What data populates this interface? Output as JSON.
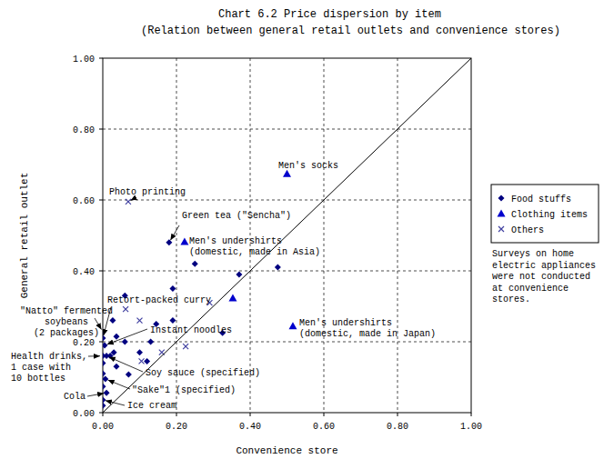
{
  "chart_data": {
    "type": "scatter",
    "title": "Chart 6.2 Price dispersion by item",
    "subtitle": "(Relation between general retail outlets and convenience stores)",
    "x_label": "Convenience store",
    "y_label": "General retail outlet",
    "xlim": [
      0,
      1
    ],
    "ylim": [
      0,
      1
    ],
    "xticks": [
      {
        "value": 0,
        "label": "0.00"
      },
      {
        "value": 0.2,
        "label": "0.20"
      },
      {
        "value": 0.4,
        "label": "0.40"
      },
      {
        "value": 0.6,
        "label": "0.60"
      },
      {
        "value": 0.8,
        "label": "0.80"
      },
      {
        "value": 1,
        "label": "1.00"
      }
    ],
    "yticks": [
      {
        "value": 0,
        "label": "0.00"
      },
      {
        "value": 0.2,
        "label": "0.20"
      },
      {
        "value": 0.4,
        "label": "0.40"
      },
      {
        "value": 0.6,
        "label": "0.60"
      },
      {
        "value": 0.8,
        "label": "0.80"
      },
      {
        "value": 1,
        "label": "1.00"
      }
    ],
    "grid": true,
    "legend": "right",
    "note": [
      "Surveys on home",
      "electric appliances",
      "were not conducted",
      "at convenience",
      "stores."
    ],
    "series": [
      {
        "name": "Food stuffs",
        "color": "#000080",
        "marker": "diamond",
        "x": [
          0.18,
          0.25,
          0.37,
          0.475,
          0.19,
          0.06,
          0.027,
          0.19,
          0.325,
          0.037,
          0.06,
          0.145,
          0.13,
          0.1,
          0.12,
          0,
          0,
          0.005,
          0,
          0.01,
          0,
          0.037,
          0,
          0.007,
          0,
          0.01,
          0,
          0,
          0.03,
          0.07,
          0.02
        ],
        "values": [
          0.48,
          0.42,
          0.39,
          0.41,
          0.35,
          0.33,
          0.26,
          0.26,
          0.225,
          0.215,
          0.2,
          0.25,
          0.2,
          0.17,
          0.145,
          0.228,
          0.21,
          0.19,
          0.16,
          0.16,
          0.14,
          0.13,
          0.11,
          0.095,
          0.074,
          0.056,
          0.036,
          0.02,
          0.17,
          0.108,
          0.16
        ],
        "labels": [
          "Green tea (\"Sencha\")",
          null,
          null,
          null,
          null,
          null,
          null,
          null,
          null,
          null,
          null,
          null,
          null,
          null,
          null,
          [
            "\"Natto\" fermented",
            "soybeans",
            "(2 packages)"
          ],
          "Retort-packed curry",
          "Instant noodles",
          [
            "Health drinks,",
            "1 case with",
            "10 bottles"
          ],
          "Soy sauce (specified)",
          null,
          null,
          null,
          "\"Sake\"1 (specified)",
          null,
          "Cola",
          "Ice cream",
          null,
          null,
          null,
          null
        ]
      },
      {
        "name": "Clothing items",
        "color": "#0000CD",
        "marker": "triangle",
        "x": [
          0.5,
          0.222,
          0.516,
          0.353
        ],
        "values": [
          0.674,
          0.482,
          0.244,
          0.323
        ],
        "labels": [
          "Men's socks",
          [
            "Men's undershirts",
            "(domestic, made in Asia)"
          ],
          [
            "Men's undershirts",
            "(domestic, made in Japan)"
          ],
          null
        ]
      },
      {
        "name": "Others",
        "color": "#4040A0",
        "marker": "x",
        "x": [
          0.069,
          0.062,
          0.1,
          0.29,
          0.225,
          0.16,
          0.105
        ],
        "values": [
          0.595,
          0.292,
          0.26,
          0.31,
          0.187,
          0.17,
          0.145
        ],
        "labels": [
          "Photo printing",
          null,
          null,
          null,
          null,
          null,
          null
        ]
      },
      {
        "type": "line",
        "color": "#000000",
        "x": [
          0,
          1
        ],
        "values": [
          0,
          1
        ]
      }
    ]
  }
}
